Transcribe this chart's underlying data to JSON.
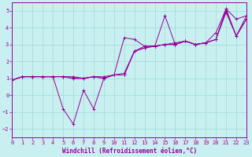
{
  "title": "",
  "xlabel": "Windchill (Refroidissement éolien,°C)",
  "ylabel": "",
  "bg_color": "#c8f0f0",
  "line_color": "#990099",
  "grid_color": "#a0d8d8",
  "xlim": [
    0,
    23
  ],
  "ylim": [
    -2.5,
    5.5
  ],
  "xticks": [
    0,
    1,
    2,
    3,
    4,
    5,
    6,
    7,
    8,
    9,
    10,
    11,
    12,
    13,
    14,
    15,
    16,
    17,
    18,
    19,
    20,
    21,
    22,
    23
  ],
  "yticks": [
    -2,
    -1,
    0,
    1,
    2,
    3,
    4,
    5
  ],
  "tick_fontsize": 5.0,
  "xlabel_fontsize": 5.5,
  "series": [
    {
      "x": [
        0,
        1,
        2,
        3,
        4,
        5,
        6,
        7,
        8,
        9,
        10,
        11,
        12,
        13,
        14,
        15,
        16,
        17,
        18,
        19,
        20,
        21,
        22,
        23
      ],
      "y": [
        0.9,
        1.1,
        1.1,
        1.1,
        1.1,
        1.1,
        1.0,
        1.0,
        1.1,
        1.0,
        1.2,
        1.2,
        2.6,
        2.8,
        2.9,
        3.0,
        3.0,
        3.2,
        3.0,
        3.1,
        3.3,
        5.0,
        3.5,
        4.5
      ]
    },
    {
      "x": [
        0,
        1,
        2,
        3,
        4,
        5,
        6,
        7,
        8,
        9,
        10,
        11,
        12,
        13,
        14,
        15,
        16,
        17,
        18,
        19,
        20,
        21,
        22,
        23
      ],
      "y": [
        0.9,
        1.1,
        1.1,
        1.1,
        1.1,
        1.1,
        1.0,
        1.0,
        1.1,
        1.0,
        1.2,
        1.2,
        2.6,
        2.8,
        2.9,
        3.0,
        3.0,
        3.2,
        3.0,
        3.1,
        3.3,
        4.9,
        3.5,
        4.5
      ]
    },
    {
      "x": [
        0,
        1,
        2,
        3,
        4,
        5,
        6,
        7,
        8,
        9,
        10,
        11,
        12,
        13,
        14,
        15,
        16,
        17,
        18,
        19,
        20,
        21,
        22,
        23
      ],
      "y": [
        0.9,
        1.1,
        1.1,
        1.1,
        1.1,
        1.1,
        1.1,
        1.0,
        1.1,
        1.1,
        1.2,
        1.3,
        2.6,
        2.9,
        2.9,
        4.7,
        3.0,
        3.2,
        3.0,
        3.1,
        3.3,
        5.1,
        3.5,
        4.7
      ]
    },
    {
      "x": [
        0,
        1,
        2,
        3,
        4,
        5,
        6,
        7,
        8,
        9,
        10,
        11,
        12,
        13,
        14,
        15,
        16,
        17,
        18,
        19,
        20,
        21,
        22,
        23
      ],
      "y": [
        0.9,
        1.1,
        1.1,
        1.1,
        1.1,
        -0.8,
        -1.7,
        0.3,
        -0.8,
        1.0,
        1.2,
        3.4,
        3.3,
        2.9,
        2.9,
        3.0,
        3.1,
        3.2,
        3.0,
        3.1,
        3.7,
        5.1,
        4.5,
        4.7
      ]
    }
  ]
}
